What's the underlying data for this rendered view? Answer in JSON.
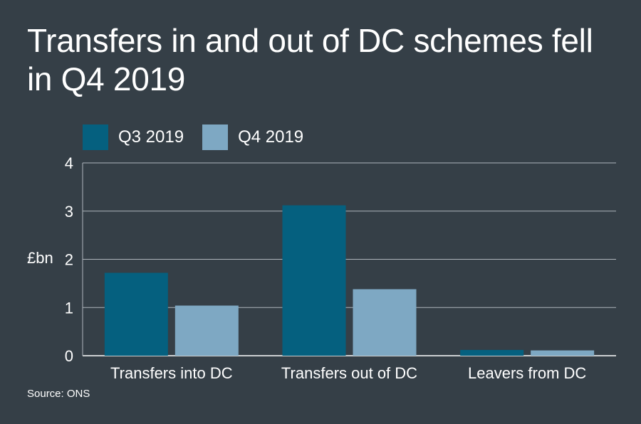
{
  "title": "Transfers in and out of DC schemes fell in Q4 2019",
  "source": "Source: ONS",
  "colors": {
    "background": "#353f47",
    "q3": "#05607f",
    "q4": "#7ea8c3",
    "grid": "#aeb6bc",
    "text": "#ffffff"
  },
  "chart_data": {
    "type": "bar",
    "title": "Transfers in and out of DC schemes fell in Q4 2019",
    "ylabel": "£bn",
    "xlabel": "",
    "categories": [
      "Transfers into DC",
      "Transfers out of DC",
      "Leavers from DC"
    ],
    "series": [
      {
        "name": "Q3 2019",
        "color": "#05607f",
        "values": [
          1.72,
          3.12,
          0.12
        ]
      },
      {
        "name": "Q4 2019",
        "color": "#7ea8c3",
        "values": [
          1.04,
          1.38,
          0.11
        ]
      }
    ],
    "ylim": [
      0,
      4
    ],
    "yticks": [
      0,
      1,
      2,
      3,
      4
    ],
    "grid": true,
    "legend": "top-left"
  }
}
